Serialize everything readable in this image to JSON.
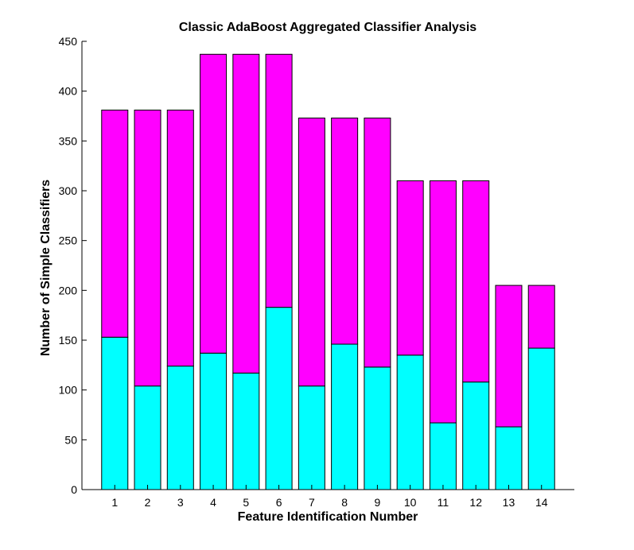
{
  "chart_data": {
    "type": "bar",
    "stacked": true,
    "title": "Classic AdaBoost Aggregated Classifier Analysis",
    "xlabel": "Feature Identification Number",
    "ylabel": "Number of Simple Classifiers",
    "categories": [
      "1",
      "2",
      "3",
      "4",
      "5",
      "6",
      "7",
      "8",
      "9",
      "10",
      "11",
      "12",
      "13",
      "14"
    ],
    "ylim": [
      0,
      450
    ],
    "yticks": [
      0,
      50,
      100,
      150,
      200,
      250,
      300,
      350,
      400,
      450
    ],
    "yticks_labels": [
      "0",
      "50",
      "100",
      "150",
      "200",
      "250",
      "300",
      "350",
      "400",
      "450"
    ],
    "grid": false,
    "series": [
      {
        "values": [
          153,
          104,
          124,
          137,
          117,
          183,
          104,
          146,
          123,
          135,
          67,
          108,
          63,
          142
        ],
        "color": "#00ffff"
      },
      {
        "values": [
          228,
          277,
          257,
          300,
          320,
          254,
          269,
          227,
          250,
          175,
          243,
          202,
          142,
          63
        ],
        "color": "#ff00ff"
      }
    ]
  }
}
